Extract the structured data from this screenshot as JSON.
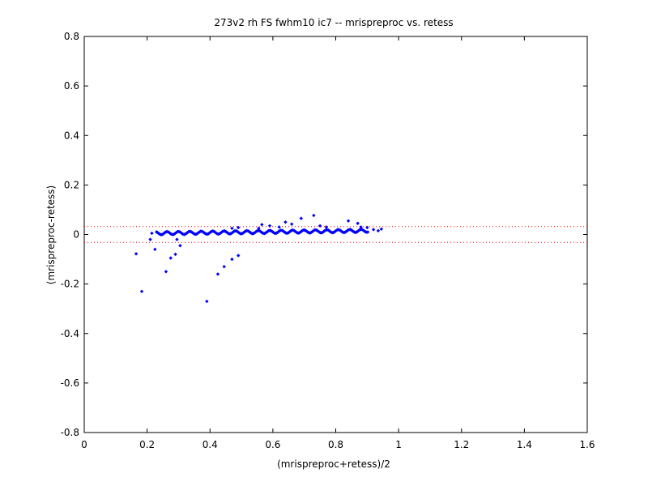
{
  "chart_data": {
    "type": "scatter",
    "title": "273v2 rh FS fwhm10 ic7 -- mrispreproc vs. retess",
    "xlabel": "(mrispreproc+retess)/2",
    "ylabel": "(mrispreproc-retess)",
    "xlim": [
      0,
      1.6
    ],
    "ylim": [
      -0.8,
      0.8
    ],
    "x_ticks": [
      "0",
      "0.2",
      "0.4",
      "0.6",
      "0.8",
      "1",
      "1.2",
      "1.4",
      "1.6"
    ],
    "y_ticks": [
      "0.8",
      "0.6",
      "0.4",
      "0.2",
      "0",
      "-0.2",
      "-0.4",
      "-0.6",
      "-0.8"
    ],
    "grid": false,
    "marker_color": "#0000ff",
    "reference_lines": [
      {
        "y": 0.032,
        "color": "#ff0000",
        "style": "dotted"
      },
      {
        "y": -0.032,
        "color": "#ff0000",
        "style": "dotted"
      }
    ],
    "series": [
      {
        "points": [
          [
            0.165,
            -0.078
          ],
          [
            0.183,
            -0.23
          ],
          [
            0.21,
            -0.02
          ],
          [
            0.215,
            0.005
          ],
          [
            0.225,
            -0.06
          ],
          [
            0.26,
            -0.15
          ],
          [
            0.275,
            -0.095
          ],
          [
            0.29,
            -0.08
          ],
          [
            0.295,
            -0.02
          ],
          [
            0.305,
            -0.045
          ],
          [
            0.39,
            -0.27
          ],
          [
            0.425,
            -0.16
          ],
          [
            0.445,
            -0.13
          ],
          [
            0.47,
            -0.1
          ],
          [
            0.49,
            -0.085
          ],
          [
            0.47,
            0.025
          ],
          [
            0.49,
            0.028
          ],
          [
            0.555,
            0.025
          ],
          [
            0.565,
            0.04
          ],
          [
            0.59,
            0.035
          ],
          [
            0.62,
            0.03
          ],
          [
            0.66,
            0.042
          ],
          [
            0.64,
            0.05
          ],
          [
            0.69,
            0.065
          ],
          [
            0.73,
            0.077
          ],
          [
            0.75,
            0.035
          ],
          [
            0.77,
            0.03
          ],
          [
            0.84,
            0.055
          ],
          [
            0.87,
            0.045
          ],
          [
            0.88,
            0.03
          ],
          [
            0.9,
            0.028
          ],
          [
            0.92,
            0.02
          ],
          [
            0.935,
            0.015
          ],
          [
            0.945,
            0.022
          ]
        ]
      }
    ]
  }
}
